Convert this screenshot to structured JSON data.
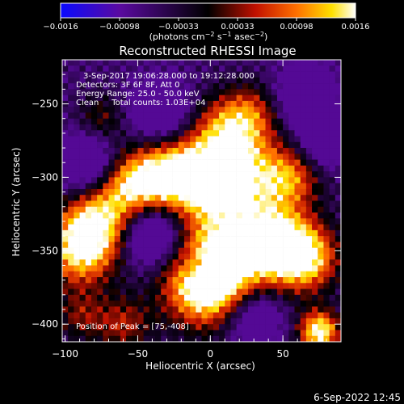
{
  "chart_data": {
    "type": "heatmap",
    "title": "Reconstructed RHESSI Image",
    "xlabel": "Heliocentric X (arcsec)",
    "ylabel": "Heliocentric Y (arcsec)",
    "xlim": [
      -102,
      90
    ],
    "ylim": [
      -412,
      -220
    ],
    "x_ticks": [
      -100,
      -50,
      0,
      50
    ],
    "y_ticks": [
      -400,
      -350,
      -300,
      -250
    ],
    "x_tick_labels": [
      "−100",
      "−50",
      "0",
      "50"
    ],
    "y_tick_labels": [
      "−400",
      "−350",
      "−300",
      "−250"
    ],
    "colorbar": {
      "range": [
        -0.0016,
        0.0016
      ],
      "ticks": [
        "−0.0016",
        "−0.00098",
        "−0.00033",
        "0.00033",
        "0.00098",
        "0.0016"
      ],
      "units_label": "(photons cm^-2 s^-1 asec^-2)",
      "colors": [
        "#0a0aff",
        "#5a0aa0",
        "#000000",
        "#c01000",
        "#ff7000",
        "#ffe000",
        "#ffffff"
      ]
    },
    "annotations": [
      "3-Sep-2017 19:06:28.000 to 19:12:28.000",
      "Detectors: 3F 6F 8F, Att 0",
      "Energy Range: 25.0 - 50.0 keV",
      "Clean     Total counts: 1.03E+04"
    ],
    "peak_label": "Position of Peak = [75,-408]",
    "peak_position": [
      75,
      -408
    ],
    "features": [
      {
        "x": 25,
        "y": -330,
        "sigma": 28,
        "amp": 0.62
      },
      {
        "x": -5,
        "y": -375,
        "sigma": 20,
        "amp": 0.85
      },
      {
        "x": 10,
        "y": -360,
        "sigma": 22,
        "amp": 0.55
      },
      {
        "x": -90,
        "y": -350,
        "sigma": 18,
        "amp": 0.85
      },
      {
        "x": -78,
        "y": -330,
        "sigma": 16,
        "amp": 0.7
      },
      {
        "x": -55,
        "y": -305,
        "sigma": 16,
        "amp": 0.75
      },
      {
        "x": -30,
        "y": -298,
        "sigma": 16,
        "amp": 0.72
      },
      {
        "x": -5,
        "y": -300,
        "sigma": 18,
        "amp": 0.7
      },
      {
        "x": 20,
        "y": -290,
        "sigma": 20,
        "amp": 0.55
      },
      {
        "x": 10,
        "y": -265,
        "sigma": 16,
        "amp": 0.5
      },
      {
        "x": 65,
        "y": -355,
        "sigma": 16,
        "amp": 0.9
      },
      {
        "x": 45,
        "y": -345,
        "sigma": 14,
        "amp": 0.6
      },
      {
        "x": 55,
        "y": -300,
        "sigma": 14,
        "amp": 0.5
      },
      {
        "x": 75,
        "y": -405,
        "sigma": 10,
        "amp": 1.0
      },
      {
        "x": 30,
        "y": -255,
        "sigma": 14,
        "amp": 0.4
      },
      {
        "x": -75,
        "y": -260,
        "sigma": 12,
        "amp": 0.35
      },
      {
        "x": -60,
        "y": -400,
        "sigma": 14,
        "amp": 0.45
      },
      {
        "x": -90,
        "y": -395,
        "sigma": 12,
        "amp": 0.35
      },
      {
        "x": -40,
        "y": -340,
        "sigma": 14,
        "amp": -0.7
      },
      {
        "x": -85,
        "y": -290,
        "sigma": 14,
        "amp": -0.6
      },
      {
        "x": -35,
        "y": -255,
        "sigma": 14,
        "amp": -0.55
      },
      {
        "x": 65,
        "y": -245,
        "sigma": 14,
        "amp": -0.6
      },
      {
        "x": 80,
        "y": -275,
        "sigma": 12,
        "amp": -0.55
      },
      {
        "x": 30,
        "y": -395,
        "sigma": 14,
        "amp": -0.55
      },
      {
        "x": -10,
        "y": -360,
        "sigma": 8,
        "amp": -0.3
      }
    ]
  },
  "footer": {
    "date_stamp": "6-Sep-2022 12:45"
  }
}
